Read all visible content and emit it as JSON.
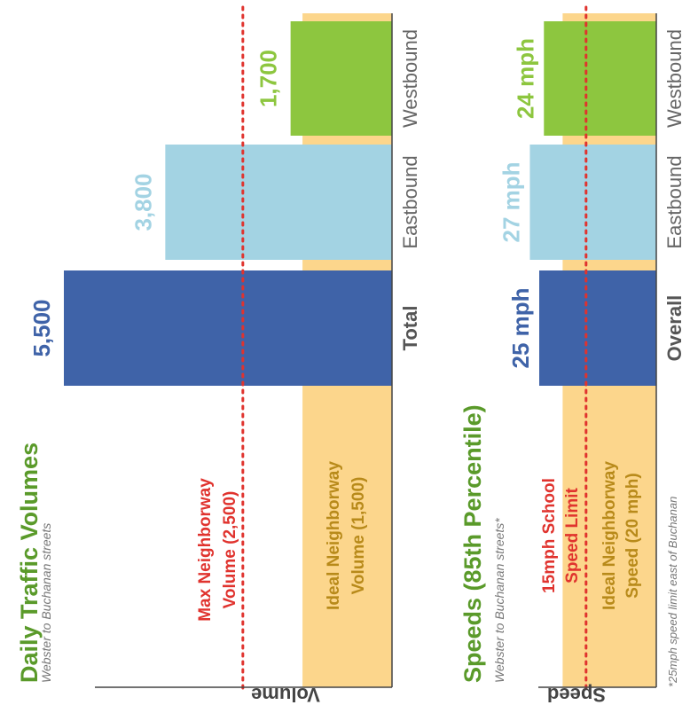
{
  "chart_data": [
    {
      "type": "bar",
      "title": "Daily Traffic Volumes",
      "subtitle": "Webster to Buchanan streets",
      "axis_label": "Volume",
      "categories": [
        "Total",
        "Eastbound",
        "Westbound"
      ],
      "values": [
        5500,
        3800,
        1700
      ],
      "value_labels": [
        "5,500",
        "3,800",
        "1,700"
      ],
      "bar_colors": [
        "#3f63a8",
        "#a3d3e3",
        "#8dc63f"
      ],
      "label_colors": [
        "#3f63a8",
        "#a3d3e3",
        "#8dc63f"
      ],
      "category_bold": [
        true,
        false,
        false
      ],
      "ylim": [
        0,
        6000
      ],
      "reference_lines": [
        {
          "value": 2500,
          "label": "Max Neighborway Volume (2,500)",
          "color": "#e0332e",
          "style": "dotted"
        }
      ],
      "reference_bands": [
        {
          "value": 1500,
          "label": "Ideal Neighborway Volume (1,500)",
          "color": "#fcd68c",
          "text_color": "#b88a1a"
        }
      ]
    },
    {
      "type": "bar",
      "title": "Speeds (85th Percentile)",
      "subtitle": "Webster to Buchanan streets*",
      "axis_label": "Speed",
      "categories": [
        "Overall",
        "Eastbound",
        "Westbound"
      ],
      "values": [
        25,
        27,
        24
      ],
      "value_labels": [
        "25 mph",
        "27 mph",
        "24 mph"
      ],
      "bar_colors": [
        "#3f63a8",
        "#a3d3e3",
        "#8dc63f"
      ],
      "label_colors": [
        "#3f63a8",
        "#a3d3e3",
        "#8dc63f"
      ],
      "category_bold": [
        true,
        false,
        false
      ],
      "xlim": [
        0,
        28
      ],
      "reference_lines": [
        {
          "value": 15,
          "label": "15mph School Speed Limit",
          "color": "#e0332e",
          "style": "dotted"
        }
      ],
      "reference_bands": [
        {
          "value": 20,
          "label": "Ideal Neighborway Speed (20 mph)",
          "color": "#fcd68c",
          "text_color": "#b88a1a"
        }
      ],
      "footnote": "*25mph speed limit east of Buchanan"
    }
  ]
}
